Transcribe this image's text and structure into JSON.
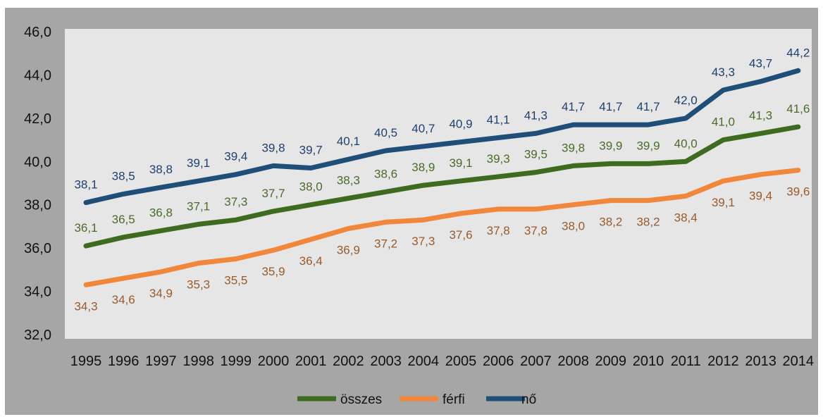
{
  "chart_data": {
    "type": "line",
    "title": "",
    "xlabel": "",
    "ylabel": "",
    "ylim": [
      32.0,
      46.0
    ],
    "y_ticks": [
      "32,0",
      "34,0",
      "36,0",
      "38,0",
      "40,0",
      "42,0",
      "44,0",
      "46,0"
    ],
    "grid": false,
    "legend_position": "bottom",
    "categories": [
      "1995",
      "1996",
      "1997",
      "1998",
      "1999",
      "2000",
      "2001",
      "2002",
      "2003",
      "2004",
      "2005",
      "2006",
      "2007",
      "2008",
      "2009",
      "2010",
      "2011",
      "2012",
      "2013",
      "2014"
    ],
    "series": [
      {
        "name": "összes",
        "color": "#3e6b1f",
        "label_color": "#4a6b2a",
        "label_position": "above",
        "values": [
          36.1,
          36.5,
          36.8,
          37.1,
          37.3,
          37.7,
          38.0,
          38.3,
          38.6,
          38.9,
          39.1,
          39.3,
          39.5,
          39.8,
          39.9,
          39.9,
          40.0,
          41.0,
          41.3,
          41.6
        ],
        "labels": [
          "36,1",
          "36,5",
          "36,8",
          "37,1",
          "37,3",
          "37,7",
          "38,0",
          "38,3",
          "38,6",
          "38,9",
          "39,1",
          "39,3",
          "39,5",
          "39,8",
          "39,9",
          "39,9",
          "40,0",
          "41,0",
          "41,3",
          "41,6"
        ]
      },
      {
        "name": "férfi",
        "color": "#f0873a",
        "label_color": "#9a5a2a",
        "label_position": "below",
        "values": [
          34.3,
          34.6,
          34.9,
          35.3,
          35.5,
          35.9,
          36.4,
          36.9,
          37.2,
          37.3,
          37.6,
          37.8,
          37.8,
          38.0,
          38.2,
          38.2,
          38.4,
          39.1,
          39.4,
          39.6
        ],
        "labels": [
          "34,3",
          "34,6",
          "34,9",
          "35,3",
          "35,5",
          "35,9",
          "36,4",
          "36,9",
          "37,2",
          "37,3",
          "37,6",
          "37,8",
          "37,8",
          "38,0",
          "38,2",
          "38,2",
          "38,4",
          "39,1",
          "39,4",
          "39,6"
        ]
      },
      {
        "name": "nő",
        "color": "#1f4e79",
        "label_color": "#1f3f6e",
        "label_position": "above",
        "values": [
          38.1,
          38.5,
          38.8,
          39.1,
          39.4,
          39.8,
          39.7,
          40.1,
          40.5,
          40.7,
          40.9,
          41.1,
          41.3,
          41.7,
          41.7,
          41.7,
          42.0,
          43.3,
          43.7,
          44.2
        ],
        "labels": [
          "38,1",
          "38,5",
          "38,8",
          "39,1",
          "39,4",
          "39,8",
          "39,7",
          "40,1",
          "40,5",
          "40,7",
          "40,9",
          "41,1",
          "41,3",
          "41,7",
          "41,7",
          "41,7",
          "42,0",
          "43,3",
          "43,7",
          "44,2"
        ]
      }
    ]
  }
}
